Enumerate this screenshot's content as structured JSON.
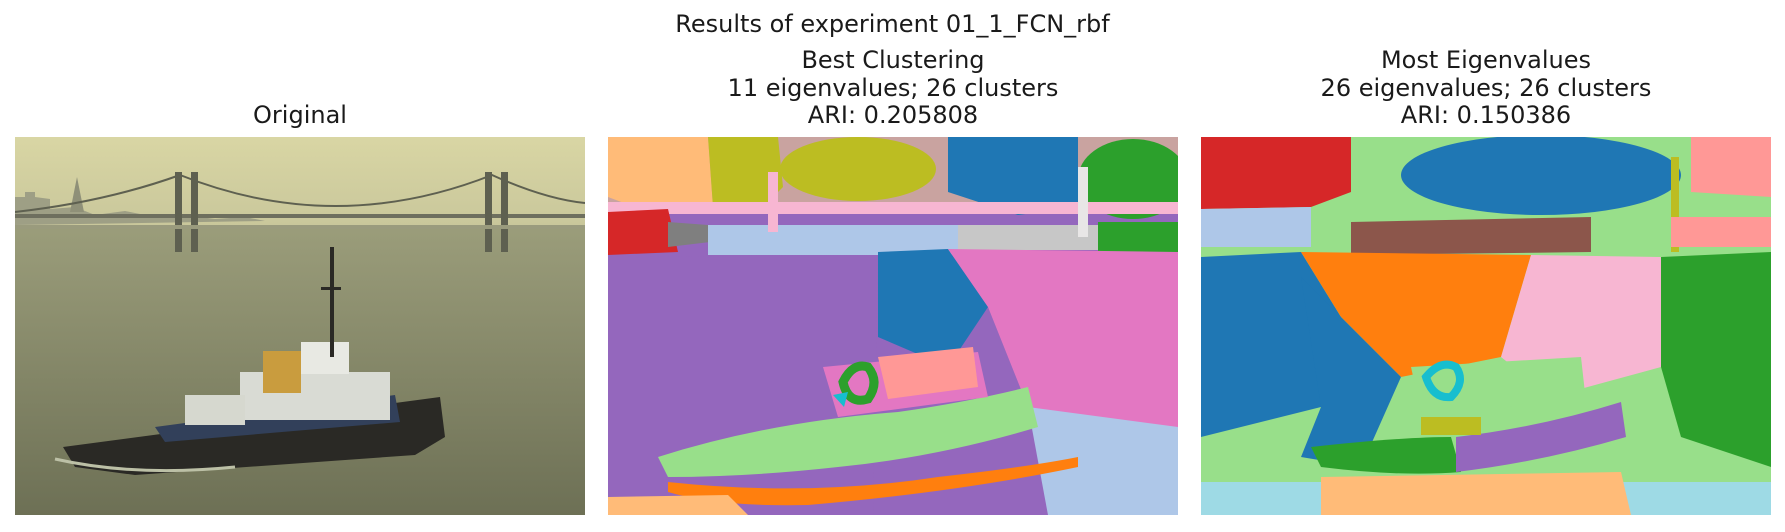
{
  "figure": {
    "suptitle": "Results of experiment 01_1_FCN_rbf",
    "panels": [
      {
        "title_lines": [
          "Original"
        ],
        "image": "photo-tugboat-bay-bridge"
      },
      {
        "title_lines": [
          "Best Clustering",
          "11 eigenvalues; 26 clusters",
          "ARI: 0.205808"
        ],
        "image": "segmentation-map"
      },
      {
        "title_lines": [
          "Most Eigenvalues",
          "26 eigenvalues; 26 clusters",
          "ARI: 0.150386"
        ],
        "image": "segmentation-map"
      }
    ]
  },
  "colors": {
    "tab_blue": "#1f77b4",
    "tab_orange": "#ff7f0e",
    "tab_green": "#2ca02c",
    "tab_red": "#d62728",
    "tab_purple": "#9467bd",
    "tab_brown": "#8c564b",
    "tab_pink": "#e377c2",
    "tab_olive": "#bcbd22",
    "tab_cyan": "#17becf",
    "light_green": "#98df8a",
    "light_blue": "#aec7e8",
    "light_orange": "#ffbb78",
    "light_pink": "#f7b6d2",
    "light_red": "#ff9896",
    "light_cyan": "#9edae5"
  }
}
